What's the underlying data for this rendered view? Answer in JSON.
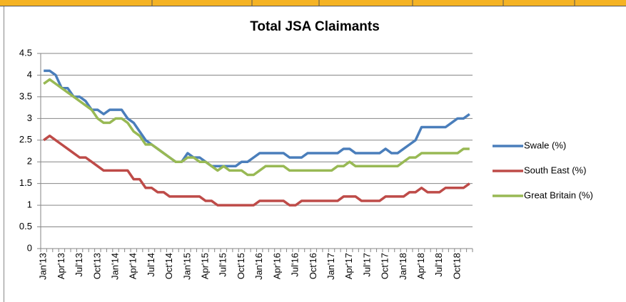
{
  "chart_data": {
    "type": "line",
    "title": "Total JSA Claimants",
    "categories": [
      "Jan'13",
      null,
      null,
      "Apr'13",
      null,
      null,
      "Jul'13",
      null,
      null,
      "Oct'13",
      null,
      null,
      "Jan'14",
      null,
      null,
      "Apr'14",
      null,
      null,
      "Jul'14",
      null,
      null,
      "Oct'14",
      null,
      null,
      "Jan'15",
      null,
      null,
      "Apr'15",
      null,
      null,
      "Jul'15",
      null,
      null,
      "Oct'15",
      null,
      null,
      "Jan'16",
      null,
      null,
      "Apr'16",
      null,
      null,
      "Jul'16",
      null,
      null,
      "Oct'16",
      null,
      null,
      "Jan'17",
      null,
      null,
      "Apr'17",
      null,
      null,
      "Jul'17",
      null,
      null,
      "Oct'17",
      null,
      null,
      "Jan'18",
      null,
      null,
      "Apr'18",
      null,
      null,
      "Jul'18",
      null,
      null,
      "Oct'18",
      null,
      null
    ],
    "series": [
      {
        "name": "Swale (%)",
        "color": "#4a7ebb",
        "values": [
          4.1,
          4.1,
          4.0,
          3.7,
          3.7,
          3.5,
          3.5,
          3.4,
          3.2,
          3.2,
          3.1,
          3.2,
          3.2,
          3.2,
          3.0,
          2.9,
          2.7,
          2.5,
          2.4,
          2.3,
          2.2,
          2.1,
          2.0,
          2.0,
          2.2,
          2.1,
          2.1,
          2.0,
          1.9,
          1.9,
          1.9,
          1.9,
          1.9,
          2.0,
          2.0,
          2.1,
          2.2,
          2.2,
          2.2,
          2.2,
          2.2,
          2.1,
          2.1,
          2.1,
          2.2,
          2.2,
          2.2,
          2.2,
          2.2,
          2.2,
          2.3,
          2.3,
          2.2,
          2.2,
          2.2,
          2.2,
          2.2,
          2.3,
          2.2,
          2.2,
          2.3,
          2.4,
          2.5,
          2.8,
          2.8,
          2.8,
          2.8,
          2.8,
          2.9,
          3.0,
          3.0,
          3.1
        ]
      },
      {
        "name": "South East (%)",
        "color": "#be4b48",
        "values": [
          2.5,
          2.6,
          2.5,
          2.4,
          2.3,
          2.2,
          2.1,
          2.1,
          2.0,
          1.9,
          1.8,
          1.8,
          1.8,
          1.8,
          1.8,
          1.6,
          1.6,
          1.4,
          1.4,
          1.3,
          1.3,
          1.2,
          1.2,
          1.2,
          1.2,
          1.2,
          1.2,
          1.1,
          1.1,
          1.0,
          1.0,
          1.0,
          1.0,
          1.0,
          1.0,
          1.0,
          1.1,
          1.1,
          1.1,
          1.1,
          1.1,
          1.0,
          1.0,
          1.1,
          1.1,
          1.1,
          1.1,
          1.1,
          1.1,
          1.1,
          1.2,
          1.2,
          1.2,
          1.1,
          1.1,
          1.1,
          1.1,
          1.2,
          1.2,
          1.2,
          1.2,
          1.3,
          1.3,
          1.4,
          1.3,
          1.3,
          1.3,
          1.4,
          1.4,
          1.4,
          1.4,
          1.5
        ]
      },
      {
        "name": "Great Britain (%)",
        "color": "#98b954",
        "values": [
          3.8,
          3.9,
          3.8,
          3.7,
          3.6,
          3.5,
          3.4,
          3.3,
          3.2,
          3.0,
          2.9,
          2.9,
          3.0,
          3.0,
          2.9,
          2.7,
          2.6,
          2.4,
          2.4,
          2.3,
          2.2,
          2.1,
          2.0,
          2.0,
          2.1,
          2.1,
          2.0,
          2.0,
          1.9,
          1.8,
          1.9,
          1.8,
          1.8,
          1.8,
          1.7,
          1.7,
          1.8,
          1.9,
          1.9,
          1.9,
          1.9,
          1.8,
          1.8,
          1.8,
          1.8,
          1.8,
          1.8,
          1.8,
          1.8,
          1.9,
          1.9,
          2.0,
          1.9,
          1.9,
          1.9,
          1.9,
          1.9,
          1.9,
          1.9,
          1.9,
          2.0,
          2.1,
          2.1,
          2.2,
          2.2,
          2.2,
          2.2,
          2.2,
          2.2,
          2.2,
          2.3,
          2.3
        ]
      }
    ],
    "ylim": [
      0,
      4.5
    ],
    "yticks": [
      0,
      0.5,
      1,
      1.5,
      2,
      2.5,
      3,
      3.5,
      4,
      4.5
    ],
    "grid": true,
    "legend": "right"
  }
}
